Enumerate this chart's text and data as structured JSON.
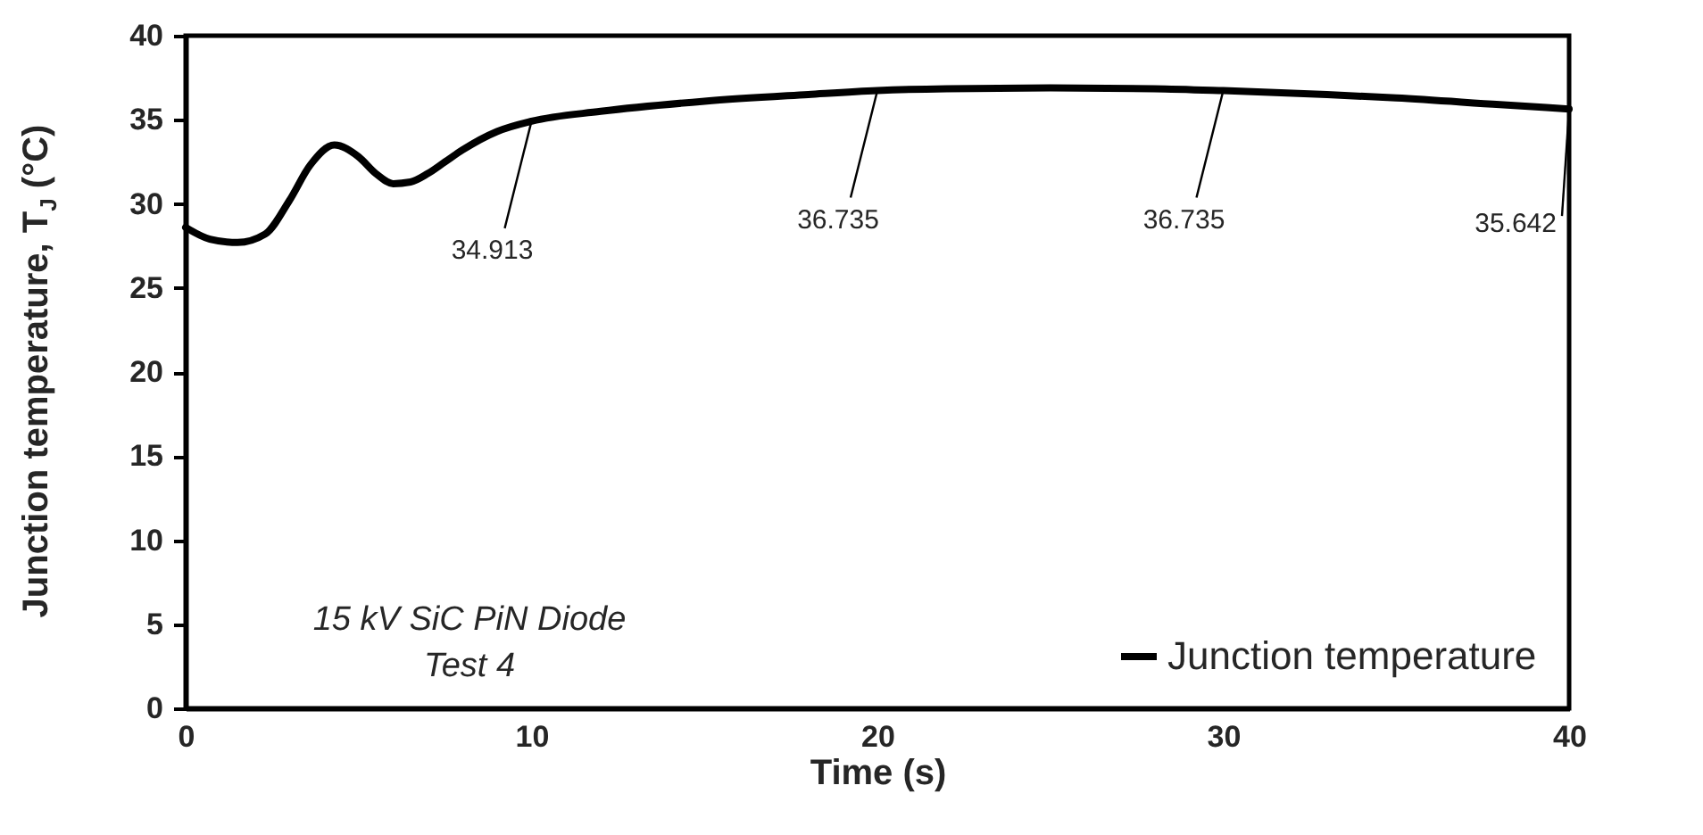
{
  "chart_data": {
    "type": "line",
    "xlabel": "Time (s)",
    "ylabel": "Junction temperature, T$_{J}$ (°C)",
    "x": [
      0,
      0.7,
      1.5,
      2.3,
      3,
      3.6,
      4.3,
      5,
      5.5,
      6,
      6.5,
      7,
      7.5,
      8,
      9,
      10,
      12,
      15,
      18,
      20,
      22,
      25,
      28,
      30,
      33,
      35,
      38,
      40
    ],
    "series": [
      {
        "name": "Junction temperature",
        "color": "#000000",
        "values": [
          28.6,
          27.9,
          27.7,
          28.2,
          30.2,
          32.3,
          33.5,
          32.8,
          31.8,
          31.2,
          31.3,
          31.8,
          32.5,
          33.2,
          34.3,
          34.913,
          35.5,
          36.1,
          36.5,
          36.735,
          36.85,
          36.9,
          36.85,
          36.735,
          36.5,
          36.3,
          35.9,
          35.642
        ]
      }
    ],
    "annotations": [
      {
        "text": "34.913",
        "x": 10,
        "y": 34.913
      },
      {
        "text": "36.735",
        "x": 20,
        "y": 36.735
      },
      {
        "text": "36.735",
        "x": 30,
        "y": 36.735
      },
      {
        "text": "35.642",
        "x": 40,
        "y": 35.642
      },
      "15 kV SiC PiN Diode",
      "Test 4"
    ],
    "xlim": [
      0,
      40
    ],
    "xticks": [
      0,
      10,
      20,
      30,
      40
    ],
    "ylim": [
      0,
      40
    ],
    "yticks": [
      0,
      5,
      10,
      15,
      20,
      25,
      30,
      35,
      40
    ],
    "grid": false,
    "legend": "bottom right",
    "marker": "none",
    "line_style": "solid"
  }
}
